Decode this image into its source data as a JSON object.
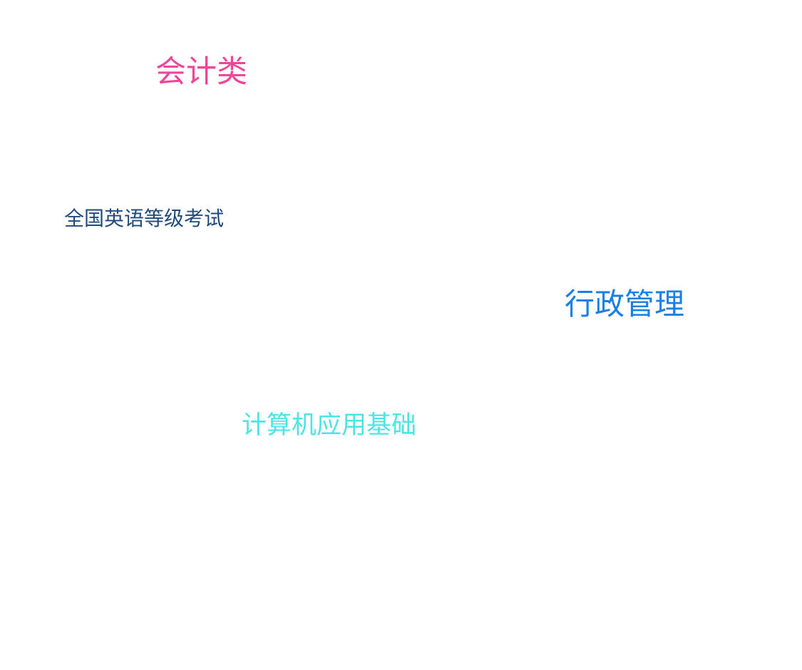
{
  "tag_cloud": {
    "tags": [
      {
        "label": "会计类",
        "color": "#f0469a"
      },
      {
        "label": "全国英语等级考试",
        "color": "#1f4a7c"
      },
      {
        "label": "行政管理",
        "color": "#1a7fe6"
      },
      {
        "label": "计算机应用基础",
        "color": "#4fe4e4"
      }
    ]
  }
}
